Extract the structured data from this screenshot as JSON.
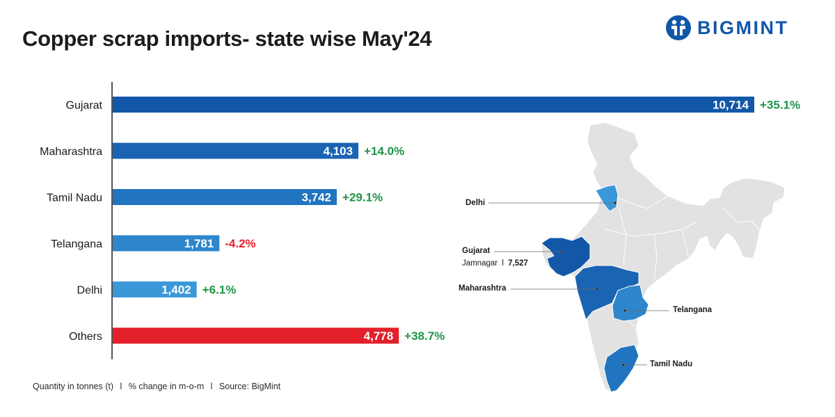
{
  "title": "Copper scrap imports- state wise May'24",
  "brand": {
    "name": "BIGMINT",
    "color": "#1157a8"
  },
  "footer": {
    "unit": "Quantity in tonnes (t)",
    "sep": "l",
    "change": "% change in m-o-m",
    "source": "Source: BigMint"
  },
  "chart_data": {
    "type": "bar",
    "orientation": "horizontal",
    "title": "Copper scrap imports- state wise May'24",
    "categories": [
      "Gujarat",
      "Maharashtra",
      "Tamil Nadu",
      "Telangana",
      "Delhi",
      "Others"
    ],
    "values": [
      10714,
      4103,
      3742,
      1781,
      1402,
      4778
    ],
    "value_labels": [
      "10,714",
      "4,103",
      "3,742",
      "1,781",
      "1,402",
      "4,778"
    ],
    "mom_change": [
      "+35.1%",
      "+14.0%",
      "+29.1%",
      "-4.2%",
      "+6.1%",
      "+38.7%"
    ],
    "colors": [
      "#1358a8",
      "#1b63b3",
      "#2174c0",
      "#2e86cc",
      "#3a98d8",
      "#e3202a"
    ],
    "change_colors": {
      "positive": "#1e9447",
      "negative": "#e3202a"
    },
    "xlim": [
      0,
      10714
    ],
    "grid": false,
    "legend": "none"
  },
  "map": {
    "labels": {
      "delhi": "Delhi",
      "gujarat": "Gujarat",
      "gujarat_city": "Jamnagar",
      "gujarat_sep": "l",
      "gujarat_value": "7,527",
      "maharashtra": "Maharashtra",
      "telangana": "Telangana",
      "tamil_nadu": "Tamil Nadu"
    },
    "colors": {
      "base": "#e2e2e2",
      "border": "#ffffff",
      "gujarat": "#1358a8",
      "maharashtra": "#1b63b3",
      "tamil_nadu": "#2174c0",
      "telangana": "#2e86cc",
      "delhi": "#3a98d8"
    }
  }
}
